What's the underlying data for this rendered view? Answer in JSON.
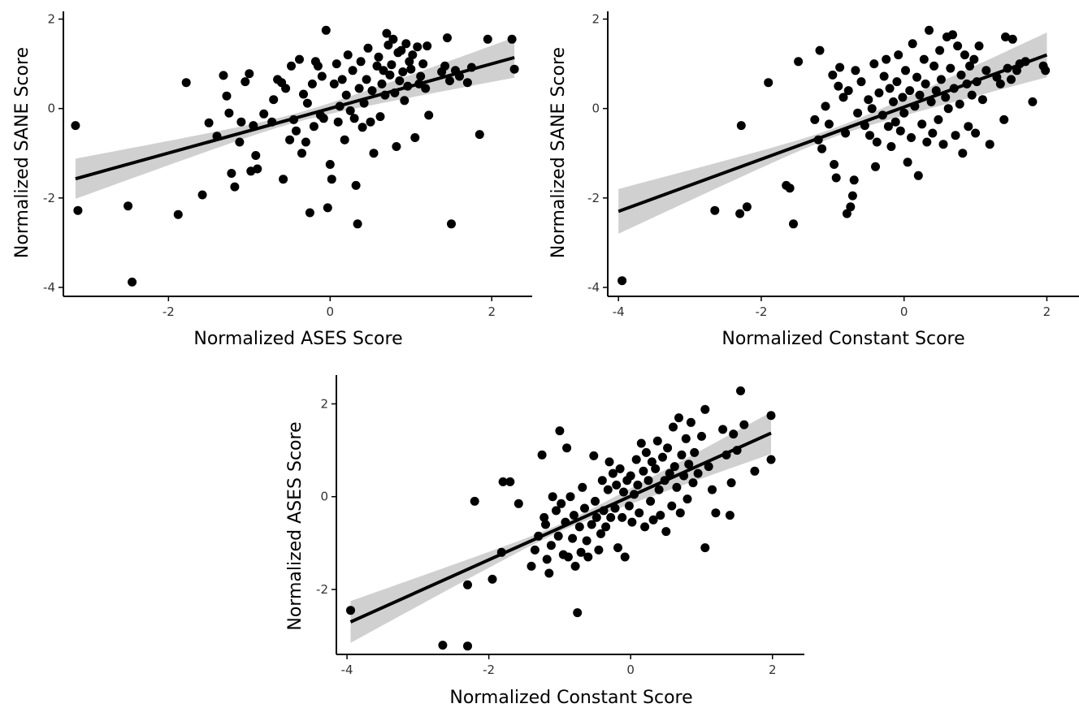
{
  "chart_data": [
    {
      "type": "scatter",
      "xlabel": "Normalized ASES Score",
      "ylabel": "Normalized SANE Score",
      "xlim": [
        -3.3,
        2.5
      ],
      "ylim": [
        -4.2,
        2.1
      ],
      "xticks": [
        -2,
        0,
        2
      ],
      "yticks": [
        -4,
        -2,
        0,
        2
      ],
      "fit": {
        "x": [
          -3.15,
          2.28
        ],
        "y": [
          -1.57,
          1.14
        ],
        "band_halfwidth_ends": 0.45,
        "band_halfwidth_center": 0.1
      },
      "points": [
        [
          -3.15,
          -0.38
        ],
        [
          -3.12,
          -2.28
        ],
        [
          -2.5,
          -2.18
        ],
        [
          -2.45,
          -3.88
        ],
        [
          -1.88,
          -2.37
        ],
        [
          -1.78,
          0.58
        ],
        [
          -1.58,
          -1.93
        ],
        [
          -1.5,
          -0.32
        ],
        [
          -1.4,
          -0.62
        ],
        [
          -1.32,
          0.74
        ],
        [
          -1.28,
          0.28
        ],
        [
          -1.25,
          -0.1
        ],
        [
          -1.22,
          -1.45
        ],
        [
          -1.18,
          -1.75
        ],
        [
          -1.12,
          -0.75
        ],
        [
          -1.1,
          -0.3
        ],
        [
          -1.05,
          0.6
        ],
        [
          -1.0,
          0.78
        ],
        [
          -0.98,
          -1.4
        ],
        [
          -0.95,
          -0.38
        ],
        [
          -0.92,
          -1.05
        ],
        [
          -0.9,
          -1.35
        ],
        [
          -0.82,
          -0.12
        ],
        [
          -0.72,
          -0.3
        ],
        [
          -0.7,
          0.2
        ],
        [
          -0.65,
          0.65
        ],
        [
          -0.6,
          0.58
        ],
        [
          -0.58,
          -1.58
        ],
        [
          -0.55,
          0.45
        ],
        [
          -0.5,
          -0.7
        ],
        [
          -0.48,
          0.95
        ],
        [
          -0.45,
          -0.25
        ],
        [
          -0.42,
          -0.5
        ],
        [
          -0.38,
          1.1
        ],
        [
          -0.35,
          -1.0
        ],
        [
          -0.33,
          0.32
        ],
        [
          -0.3,
          -0.75
        ],
        [
          -0.28,
          0.12
        ],
        [
          -0.25,
          -2.33
        ],
        [
          -0.22,
          0.55
        ],
        [
          -0.2,
          -0.4
        ],
        [
          -0.18,
          1.05
        ],
        [
          -0.15,
          0.95
        ],
        [
          -0.12,
          -0.15
        ],
        [
          -0.1,
          0.72
        ],
        [
          -0.08,
          -0.22
        ],
        [
          -0.05,
          1.75
        ],
        [
          -0.03,
          -2.22
        ],
        [
          0.0,
          -1.25
        ],
        [
          0.02,
          -1.58
        ],
        [
          0.05,
          0.55
        ],
        [
          0.08,
          1.0
        ],
        [
          0.1,
          -0.3
        ],
        [
          0.12,
          0.05
        ],
        [
          0.15,
          0.65
        ],
        [
          0.18,
          -0.7
        ],
        [
          0.2,
          0.3
        ],
        [
          0.22,
          1.2
        ],
        [
          0.25,
          -0.05
        ],
        [
          0.28,
          0.85
        ],
        [
          0.3,
          -0.22
        ],
        [
          0.32,
          -1.72
        ],
        [
          0.34,
          -2.58
        ],
        [
          0.36,
          0.45
        ],
        [
          0.38,
          1.05
        ],
        [
          0.4,
          -0.42
        ],
        [
          0.42,
          0.12
        ],
        [
          0.45,
          0.65
        ],
        [
          0.47,
          1.35
        ],
        [
          0.5,
          -0.3
        ],
        [
          0.52,
          0.4
        ],
        [
          0.54,
          -1.0
        ],
        [
          0.58,
          0.95
        ],
        [
          0.6,
          1.15
        ],
        [
          0.62,
          -0.18
        ],
        [
          0.64,
          0.55
        ],
        [
          0.66,
          0.85
        ],
        [
          0.68,
          0.3
        ],
        [
          0.7,
          1.68
        ],
        [
          0.72,
          1.42
        ],
        [
          0.74,
          0.75
        ],
        [
          0.76,
          0.98
        ],
        [
          0.78,
          1.55
        ],
        [
          0.8,
          0.35
        ],
        [
          0.82,
          -0.85
        ],
        [
          0.84,
          1.25
        ],
        [
          0.86,
          0.62
        ],
        [
          0.88,
          1.3
        ],
        [
          0.9,
          0.82
        ],
        [
          0.92,
          0.18
        ],
        [
          0.94,
          1.45
        ],
        [
          0.96,
          0.5
        ],
        [
          0.98,
          1.05
        ],
        [
          1.0,
          0.88
        ],
        [
          1.02,
          1.2
        ],
        [
          1.05,
          -0.65
        ],
        [
          1.08,
          1.38
        ],
        [
          1.1,
          0.55
        ],
        [
          1.12,
          0.72
        ],
        [
          1.15,
          1.0
        ],
        [
          1.18,
          0.45
        ],
        [
          1.2,
          1.4
        ],
        [
          1.22,
          -0.15
        ],
        [
          1.38,
          0.82
        ],
        [
          1.42,
          0.95
        ],
        [
          1.45,
          1.58
        ],
        [
          1.48,
          0.62
        ],
        [
          1.5,
          -2.58
        ],
        [
          1.55,
          0.85
        ],
        [
          1.6,
          0.72
        ],
        [
          1.7,
          0.58
        ],
        [
          1.75,
          0.92
        ],
        [
          1.85,
          -0.58
        ],
        [
          1.95,
          1.55
        ],
        [
          2.25,
          1.55
        ],
        [
          2.28,
          0.88
        ]
      ]
    },
    {
      "type": "scatter",
      "xlabel": "Normalized Constant Score",
      "ylabel": "Normalized SANE Score",
      "xlim": [
        -4.15,
        2.45
      ],
      "ylim": [
        -4.2,
        2.1
      ],
      "xticks": [
        -4,
        -2,
        0,
        2
      ],
      "yticks": [
        -4,
        -2,
        0,
        2
      ],
      "fit": {
        "x": [
          -4.0,
          2.0
        ],
        "y": [
          -2.3,
          1.2
        ],
        "band_halfwidth_ends": 0.5,
        "band_halfwidth_center": 0.1
      },
      "points": [
        [
          -3.95,
          -3.85
        ],
        [
          -2.65,
          -2.28
        ],
        [
          -2.3,
          -2.35
        ],
        [
          -2.2,
          -2.2
        ],
        [
          -2.28,
          -0.38
        ],
        [
          -1.9,
          0.58
        ],
        [
          -1.65,
          -1.72
        ],
        [
          -1.6,
          -1.78
        ],
        [
          -1.55,
          -2.58
        ],
        [
          -1.48,
          1.05
        ],
        [
          -1.25,
          -0.25
        ],
        [
          -1.2,
          -0.7
        ],
        [
          -1.18,
          1.3
        ],
        [
          -1.15,
          -0.9
        ],
        [
          -1.1,
          0.05
        ],
        [
          -1.05,
          -0.35
        ],
        [
          -1.0,
          0.75
        ],
        [
          -0.98,
          -1.25
        ],
        [
          -0.95,
          -1.55
        ],
        [
          -0.92,
          0.5
        ],
        [
          -0.9,
          0.92
        ],
        [
          -0.85,
          0.25
        ],
        [
          -0.82,
          -0.55
        ],
        [
          -0.8,
          -2.35
        ],
        [
          -0.78,
          0.4
        ],
        [
          -0.75,
          -2.2
        ],
        [
          -0.72,
          -1.95
        ],
        [
          -0.7,
          -1.6
        ],
        [
          -0.68,
          0.85
        ],
        [
          -0.65,
          -0.1
        ],
        [
          -0.6,
          0.6
        ],
        [
          -0.55,
          -0.38
        ],
        [
          -0.5,
          0.2
        ],
        [
          -0.48,
          -0.6
        ],
        [
          -0.45,
          0.0
        ],
        [
          -0.42,
          1.0
        ],
        [
          -0.4,
          -1.3
        ],
        [
          -0.38,
          -0.75
        ],
        [
          -0.35,
          0.35
        ],
        [
          -0.3,
          -0.15
        ],
        [
          -0.28,
          0.72
        ],
        [
          -0.25,
          1.1
        ],
        [
          -0.22,
          -0.4
        ],
        [
          -0.2,
          0.45
        ],
        [
          -0.18,
          -0.85
        ],
        [
          -0.15,
          0.15
        ],
        [
          -0.12,
          -0.3
        ],
        [
          -0.1,
          0.6
        ],
        [
          -0.08,
          1.2
        ],
        [
          -0.05,
          -0.5
        ],
        [
          -0.02,
          0.25
        ],
        [
          0.0,
          -0.1
        ],
        [
          0.02,
          0.85
        ],
        [
          0.05,
          -1.2
        ],
        [
          0.08,
          0.4
        ],
        [
          0.1,
          -0.65
        ],
        [
          0.12,
          1.45
        ],
        [
          0.15,
          0.05
        ],
        [
          0.18,
          0.7
        ],
        [
          0.2,
          -1.5
        ],
        [
          0.22,
          0.3
        ],
        [
          0.25,
          -0.35
        ],
        [
          0.28,
          1.1
        ],
        [
          0.3,
          0.55
        ],
        [
          0.32,
          -0.75
        ],
        [
          0.35,
          1.75
        ],
        [
          0.38,
          0.15
        ],
        [
          0.4,
          -0.55
        ],
        [
          0.42,
          0.95
        ],
        [
          0.45,
          0.4
        ],
        [
          0.48,
          -0.25
        ],
        [
          0.5,
          1.3
        ],
        [
          0.52,
          0.65
        ],
        [
          0.55,
          -0.8
        ],
        [
          0.58,
          0.25
        ],
        [
          0.6,
          1.6
        ],
        [
          0.62,
          0.0
        ],
        [
          0.65,
          0.9
        ],
        [
          0.68,
          1.65
        ],
        [
          0.7,
          0.45
        ],
        [
          0.72,
          -0.6
        ],
        [
          0.75,
          1.4
        ],
        [
          0.78,
          0.1
        ],
        [
          0.8,
          0.75
        ],
        [
          0.82,
          -1.0
        ],
        [
          0.85,
          1.2
        ],
        [
          0.88,
          0.55
        ],
        [
          0.9,
          -0.4
        ],
        [
          0.92,
          0.95
        ],
        [
          0.95,
          0.3
        ],
        [
          0.98,
          1.1
        ],
        [
          1.0,
          -0.55
        ],
        [
          1.02,
          0.6
        ],
        [
          1.05,
          1.4
        ],
        [
          1.1,
          0.2
        ],
        [
          1.15,
          0.85
        ],
        [
          1.2,
          -0.8
        ],
        [
          1.3,
          0.7
        ],
        [
          1.35,
          0.55
        ],
        [
          1.4,
          -0.25
        ],
        [
          1.42,
          1.6
        ],
        [
          1.45,
          0.9
        ],
        [
          1.5,
          0.65
        ],
        [
          1.52,
          1.55
        ],
        [
          1.58,
          0.85
        ],
        [
          1.62,
          1.0
        ],
        [
          1.7,
          1.05
        ],
        [
          1.8,
          0.15
        ],
        [
          1.95,
          0.95
        ],
        [
          1.98,
          0.85
        ]
      ]
    },
    {
      "type": "scatter",
      "xlabel": "Normalized Constant Score",
      "ylabel": "Normalized ASES Score",
      "xlim": [
        -4.15,
        2.45
      ],
      "ylim": [
        -3.4,
        2.55
      ],
      "xticks": [
        -4,
        -2,
        0,
        2
      ],
      "yticks": [
        -2,
        0,
        2
      ],
      "fit": {
        "x": [
          -3.95,
          1.98
        ],
        "y": [
          -2.7,
          1.37
        ],
        "band_halfwidth_ends": 0.45,
        "band_halfwidth_center": 0.08
      },
      "points": [
        [
          -3.95,
          -2.45
        ],
        [
          -2.65,
          -3.2
        ],
        [
          -2.3,
          -3.22
        ],
        [
          -2.3,
          -1.9
        ],
        [
          -2.2,
          -0.1
        ],
        [
          -1.95,
          -1.78
        ],
        [
          -1.82,
          -1.2
        ],
        [
          -1.8,
          0.32
        ],
        [
          -1.7,
          0.32
        ],
        [
          -1.58,
          -0.15
        ],
        [
          -1.4,
          -1.5
        ],
        [
          -1.35,
          -1.15
        ],
        [
          -1.3,
          -0.85
        ],
        [
          -1.25,
          0.9
        ],
        [
          -1.22,
          -0.45
        ],
        [
          -1.2,
          -0.6
        ],
        [
          -1.18,
          -1.35
        ],
        [
          -1.15,
          -1.65
        ],
        [
          -1.12,
          -1.05
        ],
        [
          -1.1,
          0.0
        ],
        [
          -1.05,
          -0.3
        ],
        [
          -1.02,
          -0.85
        ],
        [
          -1.0,
          1.42
        ],
        [
          -0.98,
          -0.15
        ],
        [
          -0.95,
          -1.25
        ],
        [
          -0.92,
          -0.55
        ],
        [
          -0.9,
          1.05
        ],
        [
          -0.88,
          -1.3
        ],
        [
          -0.85,
          0.0
        ],
        [
          -0.82,
          -0.9
        ],
        [
          -0.8,
          -0.4
        ],
        [
          -0.78,
          -1.5
        ],
        [
          -0.75,
          -2.5
        ],
        [
          -0.72,
          -0.65
        ],
        [
          -0.7,
          -1.2
        ],
        [
          -0.68,
          0.2
        ],
        [
          -0.65,
          -0.25
        ],
        [
          -0.62,
          -0.95
        ],
        [
          -0.6,
          -1.3
        ],
        [
          -0.55,
          -0.6
        ],
        [
          -0.52,
          0.88
        ],
        [
          -0.5,
          -0.1
        ],
        [
          -0.48,
          -0.45
        ],
        [
          -0.45,
          -1.15
        ],
        [
          -0.42,
          -0.8
        ],
        [
          -0.4,
          0.35
        ],
        [
          -0.38,
          -0.3
        ],
        [
          -0.35,
          -0.65
        ],
        [
          -0.32,
          0.15
        ],
        [
          -0.3,
          0.75
        ],
        [
          -0.28,
          -0.45
        ],
        [
          -0.25,
          0.5
        ],
        [
          -0.22,
          -0.25
        ],
        [
          -0.2,
          0.25
        ],
        [
          -0.18,
          -1.1
        ],
        [
          -0.15,
          0.6
        ],
        [
          -0.12,
          -0.45
        ],
        [
          -0.1,
          0.1
        ],
        [
          -0.08,
          -1.3
        ],
        [
          -0.05,
          0.35
        ],
        [
          -0.02,
          -0.2
        ],
        [
          0.0,
          0.45
        ],
        [
          0.02,
          -0.55
        ],
        [
          0.05,
          0.05
        ],
        [
          0.08,
          0.8
        ],
        [
          0.1,
          0.25
        ],
        [
          0.12,
          -0.35
        ],
        [
          0.15,
          1.15
        ],
        [
          0.18,
          0.55
        ],
        [
          0.2,
          -0.65
        ],
        [
          0.22,
          0.95
        ],
        [
          0.25,
          0.35
        ],
        [
          0.28,
          -0.1
        ],
        [
          0.3,
          0.75
        ],
        [
          0.32,
          -0.5
        ],
        [
          0.35,
          0.6
        ],
        [
          0.38,
          1.2
        ],
        [
          0.4,
          0.15
        ],
        [
          0.42,
          -0.4
        ],
        [
          0.45,
          0.85
        ],
        [
          0.48,
          0.35
        ],
        [
          0.5,
          -0.75
        ],
        [
          0.52,
          1.05
        ],
        [
          0.55,
          0.5
        ],
        [
          0.58,
          -0.2
        ],
        [
          0.6,
          1.5
        ],
        [
          0.62,
          0.65
        ],
        [
          0.65,
          0.2
        ],
        [
          0.68,
          1.7
        ],
        [
          0.7,
          -0.35
        ],
        [
          0.72,
          0.9
        ],
        [
          0.75,
          0.45
        ],
        [
          0.78,
          1.25
        ],
        [
          0.8,
          -0.05
        ],
        [
          0.82,
          0.7
        ],
        [
          0.85,
          1.6
        ],
        [
          0.88,
          0.3
        ],
        [
          0.9,
          0.95
        ],
        [
          0.95,
          0.5
        ],
        [
          1.0,
          1.3
        ],
        [
          1.05,
          1.88
        ],
        [
          1.05,
          -1.1
        ],
        [
          1.1,
          0.65
        ],
        [
          1.15,
          0.15
        ],
        [
          1.2,
          -0.35
        ],
        [
          1.3,
          1.45
        ],
        [
          1.35,
          0.9
        ],
        [
          1.4,
          -0.4
        ],
        [
          1.42,
          0.3
        ],
        [
          1.45,
          1.35
        ],
        [
          1.5,
          1.0
        ],
        [
          1.55,
          2.28
        ],
        [
          1.6,
          1.55
        ],
        [
          1.75,
          0.55
        ],
        [
          1.98,
          1.75
        ],
        [
          1.98,
          0.8
        ]
      ]
    }
  ]
}
